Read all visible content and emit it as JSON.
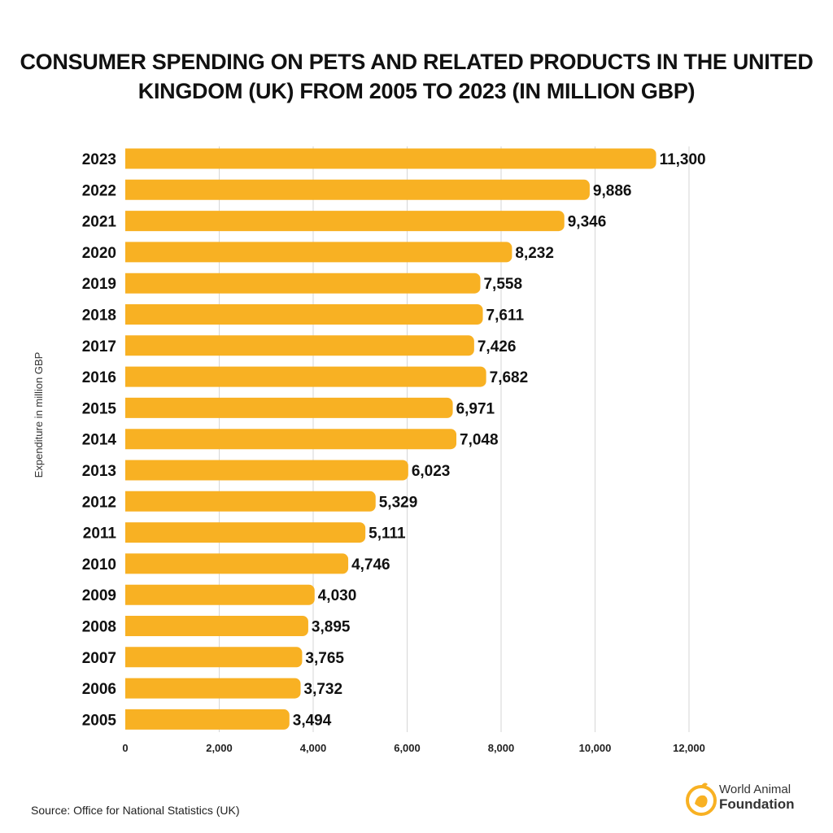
{
  "chart_data": {
    "type": "bar",
    "orientation": "horizontal",
    "title": "CONSUMER SPENDING ON PETS AND RELATED PRODUCTS IN THE UNITED KINGDOM (UK) FROM 2005 TO 2023 (IN MILLION GBP)",
    "ylabel": "Expenditure in million GBP",
    "xlabel": "",
    "categories": [
      "2023",
      "2022",
      "2021",
      "2020",
      "2019",
      "2018",
      "2017",
      "2016",
      "2015",
      "2014",
      "2013",
      "2012",
      "2011",
      "2010",
      "2009",
      "2008",
      "2007",
      "2006",
      "2005"
    ],
    "values": [
      11300,
      9886,
      9346,
      8232,
      7558,
      7611,
      7426,
      7682,
      6971,
      7048,
      6023,
      5329,
      5111,
      4746,
      4030,
      3895,
      3765,
      3732,
      3494
    ],
    "data_labels": [
      "11,300",
      "9,886",
      "9,346",
      "8,232",
      "7,558",
      "7,611",
      "7,426",
      "7,682",
      "6,971",
      "7,048",
      "6,023",
      "5,329",
      "5,111",
      "4,746",
      "4,030",
      "3,895",
      "3,765",
      "3,732",
      "3,494"
    ],
    "xticks": [
      0,
      2000,
      4000,
      6000,
      8000,
      10000,
      12000
    ],
    "xtick_labels": [
      "0",
      "2,000",
      "4,000",
      "6,000",
      "8,000",
      "10,000",
      "12,000"
    ],
    "xlim": [
      0,
      12000
    ],
    "grid": "vertical",
    "bar_color": "#F8B123"
  },
  "source": "Source: Office for National Statistics (UK)",
  "logo": {
    "line1": "World Animal",
    "line2": "Foundation",
    "color": "#F8B123"
  }
}
